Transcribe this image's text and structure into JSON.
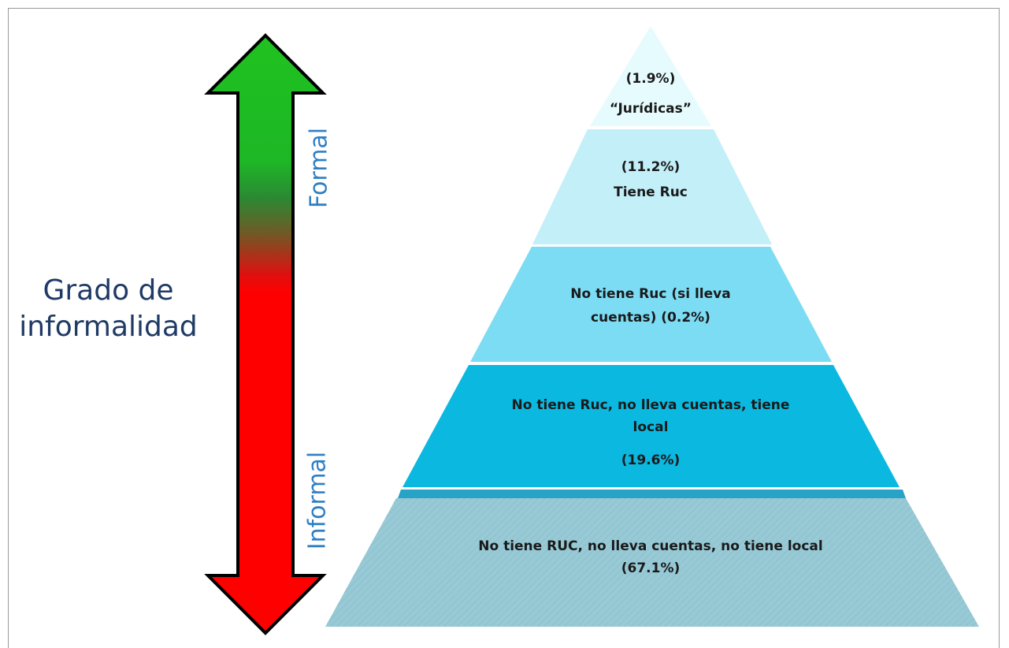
{
  "title": {
    "line1": "Grado de",
    "line2": "informalidad"
  },
  "axis": {
    "top_label": "Formal",
    "bottom_label": "Informal",
    "colors": {
      "formal": "#22bb22",
      "informal": "#ff0000"
    }
  },
  "tiers": [
    {
      "percent_text": "(1.9%)",
      "label": "“Jurídicas”",
      "share": 1.9,
      "color": "#e6fbfd"
    },
    {
      "percent_text": "(11.2%)",
      "label": "Tiene Ruc",
      "share": 11.2,
      "color": "#c3eff9"
    },
    {
      "label_line1": "No tiene Ruc (si lleva",
      "label_line2": "cuentas) (0.2%)",
      "share": 0.2,
      "color": "#7cdcf4"
    },
    {
      "label_line1": "No tiene Ruc, no lleva cuentas, tiene",
      "label_line2": "local",
      "percent_text": "(19.6%)",
      "share": 19.6,
      "color": "#0ab8e0"
    },
    {
      "label_line1": "No tiene RUC, no lleva cuentas, no tiene local",
      "label_line2": "(67.1%)",
      "share": 67.1,
      "color": "#98cad6"
    }
  ]
}
